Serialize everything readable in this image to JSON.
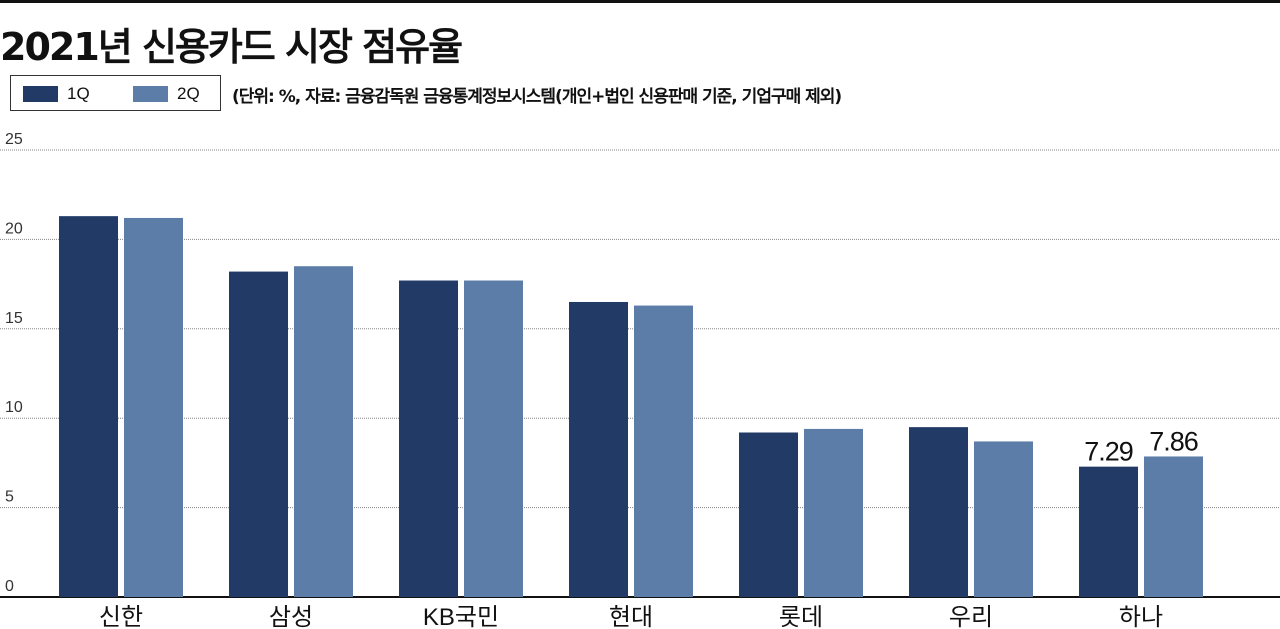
{
  "title": "2021년 신용카드 시장 점유율",
  "note": "(단위: %, 자료: 금융감독원 금융통계정보시스템(개인+법인 신용판매 기준, 기업구매 제외)",
  "colors": {
    "q1": "#213a66",
    "q2": "#5b7da8",
    "grid": "#888888",
    "text": "#111111"
  },
  "chart_data": {
    "type": "bar",
    "title": "2021년 신용카드 시장 점유율",
    "xlabel": "",
    "ylabel": "",
    "ylim": [
      0,
      25
    ],
    "yticks": [
      "0",
      "5",
      "10",
      "15",
      "20",
      "25"
    ],
    "grid": true,
    "legend": "top-left",
    "categories": [
      "신한",
      "삼성",
      "KB국민",
      "현대",
      "롯데",
      "우리",
      "하나"
    ],
    "series": [
      {
        "name": "1Q",
        "values": [
          21.3,
          18.2,
          17.7,
          16.5,
          9.2,
          9.5,
          7.29
        ]
      },
      {
        "name": "2Q",
        "values": [
          21.2,
          18.5,
          17.7,
          16.3,
          9.4,
          8.7,
          7.86
        ]
      }
    ],
    "annotations": [
      {
        "category": "하나",
        "series": "1Q",
        "text": "7.29"
      },
      {
        "category": "하나",
        "series": "2Q",
        "text": "7.86"
      }
    ]
  }
}
